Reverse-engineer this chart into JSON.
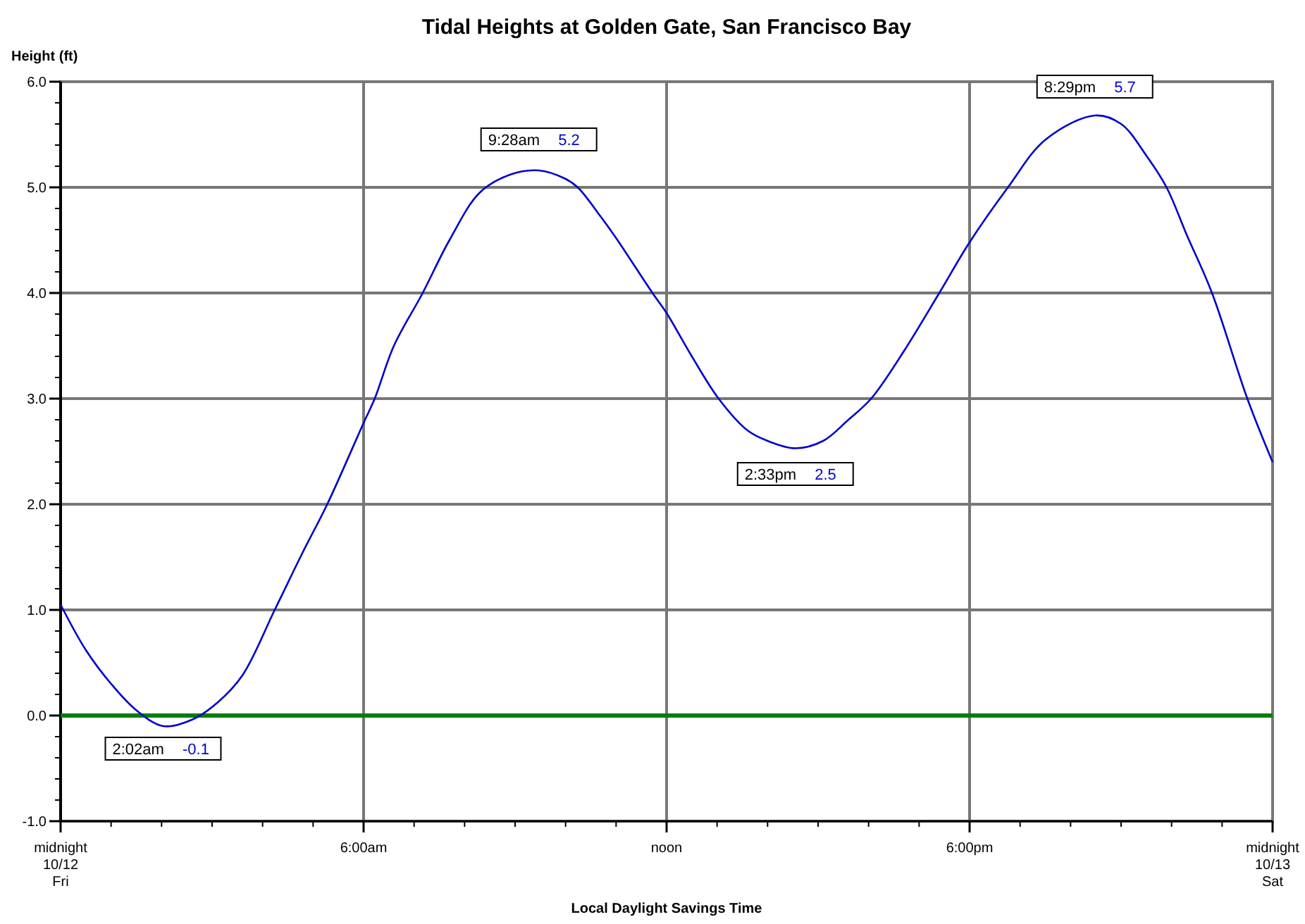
{
  "chart_data": {
    "type": "line",
    "title": "Tidal Heights at Golden Gate, San Francisco Bay",
    "xlabel": "Local Daylight Savings Time",
    "ylabel": "Height (ft)",
    "xlim": [
      0,
      24
    ],
    "xticks": [
      {
        "value": 0,
        "label": "midnight\n10/12\nFri"
      },
      {
        "value": 6,
        "label": "6:00am"
      },
      {
        "value": 12,
        "label": "noon"
      },
      {
        "value": 18,
        "label": "6:00pm"
      },
      {
        "value": 24,
        "label": "midnight\n10/13\nSat"
      }
    ],
    "ylim": [
      -1,
      6
    ],
    "yticks": [
      {
        "value": -1,
        "label": "-1.0"
      },
      {
        "value": 0,
        "label": "0.0"
      },
      {
        "value": 1,
        "label": "1.0"
      },
      {
        "value": 2,
        "label": "2.0"
      },
      {
        "value": 3,
        "label": "3.0"
      },
      {
        "value": 4,
        "label": "4.0"
      },
      {
        "value": 5,
        "label": "5.0"
      },
      {
        "value": 6,
        "label": "6.0"
      }
    ],
    "grid": true,
    "marker": "none",
    "line_style": "solid",
    "series": [
      {
        "color": "#0000cc",
        "x": [
          0,
          0.5,
          1,
          1.5,
          2.03,
          2.6,
          3.1,
          3.6,
          4.24,
          4.8,
          5.28,
          6,
          6.22,
          6.6,
          7.17,
          7.7,
          8.3,
          8.9,
          9.47,
          10,
          10.24,
          10.7,
          11,
          11.72,
          12,
          12.5,
          13.03,
          13.6,
          14,
          14.55,
          15.1,
          15.6,
          16.05,
          16.7,
          17.4,
          18,
          18.76,
          19.5,
          20.48,
          21,
          21.5,
          21.9,
          22.3,
          22.8,
          23.5,
          24
        ],
        "values": [
          1.05,
          0.62,
          0.3,
          0.05,
          -0.1,
          -0.04,
          0.12,
          0.38,
          1.0,
          1.55,
          2.0,
          2.77,
          3.0,
          3.5,
          4.0,
          4.5,
          4.95,
          5.12,
          5.16,
          5.08,
          5.0,
          4.72,
          4.52,
          4.0,
          3.81,
          3.4,
          3.0,
          2.7,
          2.6,
          2.53,
          2.6,
          2.8,
          3.0,
          3.45,
          4.0,
          4.48,
          5.0,
          5.45,
          5.68,
          5.6,
          5.3,
          5.0,
          4.55,
          4.0,
          3.0,
          2.4
        ]
      }
    ],
    "ref_lines": [
      {
        "axis": "y",
        "value": 0,
        "color": "#008000"
      }
    ],
    "annotations": [
      {
        "text": "2:02am -0.1",
        "x": 2.03,
        "y": -0.1
      },
      {
        "text": "9:28am 5.2",
        "x": 9.47,
        "y": 5.2
      },
      {
        "text": "2:33pm 2.5",
        "x": 14.55,
        "y": 2.5
      },
      {
        "text": "8:29pm 5.7",
        "x": 20.48,
        "y": 5.7
      }
    ]
  }
}
